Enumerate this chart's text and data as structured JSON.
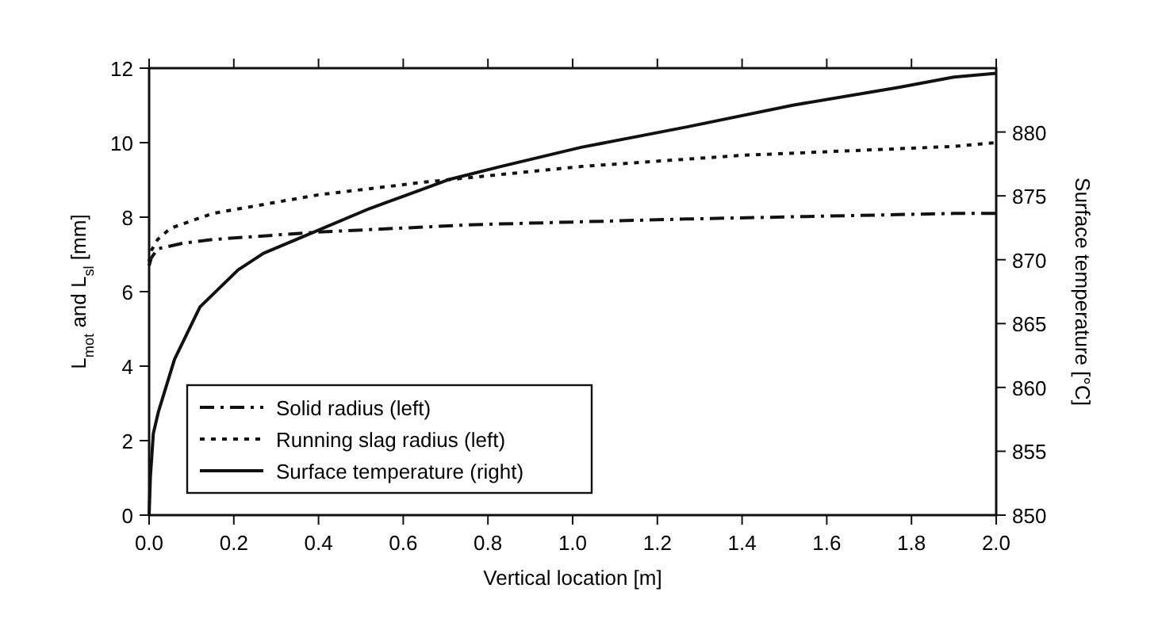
{
  "chart_data": {
    "type": "line",
    "xlabel": "Vertical location [m]",
    "ylabel": "L$_{mot}$ and L$_{sl}$ [mm]",
    "y2label": "Surface temperature [°C]",
    "xlim": [
      0,
      2
    ],
    "xticks": [
      {
        "value": 0,
        "label": "0.0"
      },
      0.2,
      0.4,
      0.6,
      0.8,
      {
        "value": 1,
        "label": "1.0"
      },
      1.2,
      1.4,
      1.6,
      1.8,
      {
        "value": 2,
        "label": "2.0"
      }
    ],
    "ylim": [
      0,
      12
    ],
    "yticks": [
      0,
      2,
      4,
      6,
      8,
      10,
      12
    ],
    "y2lim": [
      850,
      885
    ],
    "y2ticks": [
      850,
      855,
      860,
      865,
      870,
      875,
      880
    ],
    "grid": false,
    "legend": "bottom left",
    "series": [
      {
        "name": "Solid radius (left)",
        "color": "#111111",
        "line_style": "dashed",
        "x": [
          0,
          0.005,
          0.02,
          0.08,
          0.15,
          0.4,
          0.77,
          1.27,
          1.9,
          2.0
        ],
        "values": [
          6.7,
          6.9,
          7.15,
          7.3,
          7.4,
          7.6,
          7.8,
          7.95,
          8.1,
          8.1
        ]
      },
      {
        "name": "Running slag radius (left)",
        "color": "#111111",
        "line_style": "dotted",
        "x": [
          0,
          0.005,
          0.02,
          0.05,
          0.15,
          0.4,
          0.65,
          1.02,
          1.4,
          1.9,
          2.0
        ],
        "values": [
          6.8,
          7.1,
          7.4,
          7.7,
          8.1,
          8.6,
          8.94,
          9.36,
          9.66,
          9.9,
          10.0
        ]
      },
      {
        "name": "Surface temperature (right)",
        "color": "#111111",
        "line_style": "solid",
        "axis": "y2",
        "x": [
          0,
          0.003,
          0.01,
          0.022,
          0.06,
          0.12,
          0.21,
          0.27,
          0.37,
          0.52,
          0.71,
          0.83,
          1.02,
          1.27,
          1.52,
          1.77,
          1.9,
          2.0
        ],
        "values": [
          850,
          853,
          856.4,
          858.1,
          862.2,
          866.3,
          869.2,
          870.5,
          871.9,
          874.0,
          876.3,
          877.3,
          878.8,
          880.4,
          882.1,
          883.5,
          884.3,
          884.6
        ]
      }
    ]
  }
}
